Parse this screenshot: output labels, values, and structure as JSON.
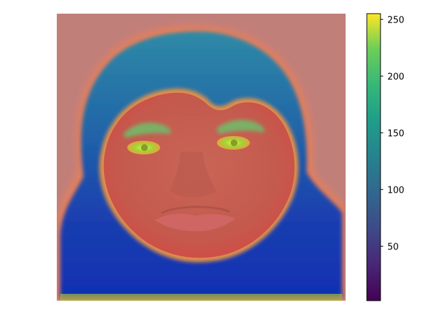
{
  "chart_data": {
    "type": "heatmap",
    "title": "",
    "xlabel": "",
    "ylabel": "",
    "axes_visible": false,
    "overlay": "colormap heatmap blended over a face photograph",
    "colormap": "viridis",
    "colorbar": {
      "placement": "right",
      "range": [
        2,
        255
      ],
      "ticks": [
        50,
        100,
        150,
        200,
        250
      ]
    },
    "regions": [
      {
        "name": "background",
        "value": 0
      },
      {
        "name": "face-skin",
        "value": 0
      },
      {
        "name": "eyebrow-left",
        "value": 185
      },
      {
        "name": "eyebrow-right",
        "value": 185
      },
      {
        "name": "eye-left",
        "value": 210
      },
      {
        "name": "eye-right",
        "value": 210
      },
      {
        "name": "head-covering-top",
        "value": 110
      },
      {
        "name": "head-covering-lower",
        "value": 60
      }
    ]
  },
  "colors": {
    "saturated_red": "#d04a40",
    "viridis_low": "#440154",
    "viridis_mid": "#21918c",
    "viridis_high": "#fde725"
  }
}
